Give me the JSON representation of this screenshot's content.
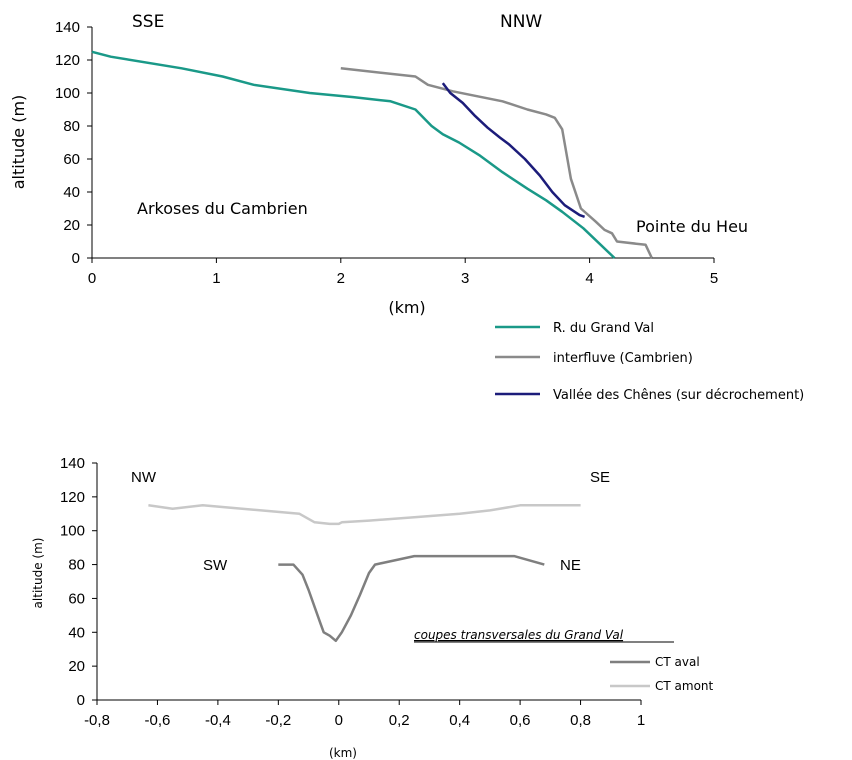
{
  "chart_data": [
    {
      "type": "line",
      "ylabel": "altitude (m)",
      "xlabel": "(km)",
      "xlim": [
        0,
        5
      ],
      "ylim": [
        0,
        140
      ],
      "x_ticks": [
        "0",
        "1",
        "2",
        "3",
        "4",
        "5"
      ],
      "y_ticks": [
        "0",
        "20",
        "40",
        "60",
        "80",
        "100",
        "120",
        "140"
      ],
      "grid": false,
      "legend_position": "bottom-right, below plot",
      "annotations": {
        "sse": "SSE",
        "nnw": "NNW",
        "arkoses": "Arkoses  du Cambrien",
        "pointe": "Pointe du Heu"
      },
      "series": [
        {
          "name": "R. du Grand Val",
          "color": "#1a9988",
          "points": [
            [
              0,
              125
            ],
            [
              0.15,
              122
            ],
            [
              0.72,
              115
            ],
            [
              1.05,
              110
            ],
            [
              1.3,
              105
            ],
            [
              1.75,
              100
            ],
            [
              2.1,
              97.5
            ],
            [
              2.4,
              95
            ],
            [
              2.6,
              90
            ],
            [
              2.73,
              80
            ],
            [
              2.82,
              75
            ],
            [
              2.95,
              70
            ],
            [
              3.12,
              62
            ],
            [
              3.3,
              52
            ],
            [
              3.5,
              42
            ],
            [
              3.65,
              35
            ],
            [
              3.78,
              28
            ],
            [
              3.95,
              18
            ],
            [
              4.2,
              0
            ]
          ]
        },
        {
          "name": "interfluve (Cambrien)",
          "color": "#8a8a8a",
          "points": [
            [
              2.0,
              115
            ],
            [
              2.6,
              110
            ],
            [
              2.7,
              105
            ],
            [
              2.9,
              101
            ],
            [
              3.1,
              98
            ],
            [
              3.3,
              95
            ],
            [
              3.5,
              90
            ],
            [
              3.65,
              87
            ],
            [
              3.72,
              85
            ],
            [
              3.78,
              78
            ],
            [
              3.85,
              48
            ],
            [
              3.93,
              30
            ],
            [
              4.05,
              22
            ],
            [
              4.12,
              17
            ],
            [
              4.18,
              15
            ],
            [
              4.22,
              10
            ],
            [
              4.45,
              8
            ],
            [
              4.5,
              0
            ]
          ]
        },
        {
          "name": "Vallée des Chênes (sur décrochement)",
          "color": "#1c1c7a",
          "points": [
            [
              2.82,
              106
            ],
            [
              2.88,
              100
            ],
            [
              2.98,
              94
            ],
            [
              3.08,
              86
            ],
            [
              3.18,
              79
            ],
            [
              3.28,
              73
            ],
            [
              3.35,
              69
            ],
            [
              3.48,
              60
            ],
            [
              3.6,
              50
            ],
            [
              3.7,
              40
            ],
            [
              3.8,
              32
            ],
            [
              3.92,
              26
            ],
            [
              3.96,
              25
            ]
          ]
        }
      ]
    },
    {
      "type": "line",
      "ylabel": "altitude (m)",
      "xlabel": "(km)",
      "xlim": [
        -0.8,
        1
      ],
      "ylim": [
        0,
        140
      ],
      "x_ticks": [
        "-0,8",
        "-0,6",
        "-0,4",
        "-0,2",
        "0",
        "0,2",
        "0,4",
        "0,6",
        "0,8",
        "1"
      ],
      "y_ticks": [
        "0",
        "20",
        "40",
        "60",
        "80",
        "100",
        "120",
        "140"
      ],
      "grid": false,
      "legend_title": "coupes transversales du Grand Val",
      "legend_position": "right, inside plot",
      "annotations": {
        "nw": "NW",
        "se": "SE",
        "sw": "SW",
        "ne": "NE"
      },
      "series": [
        {
          "name": "CT aval",
          "color": "#7f7f7f",
          "points": [
            [
              -0.2,
              80
            ],
            [
              -0.15,
              80
            ],
            [
              -0.12,
              74
            ],
            [
              -0.1,
              65
            ],
            [
              -0.08,
              55
            ],
            [
              -0.06,
              45
            ],
            [
              -0.05,
              40
            ],
            [
              -0.03,
              38
            ],
            [
              -0.01,
              35
            ],
            [
              0.01,
              40
            ],
            [
              0.04,
              50
            ],
            [
              0.07,
              62
            ],
            [
              0.1,
              75
            ],
            [
              0.12,
              80
            ],
            [
              0.25,
              85
            ],
            [
              0.58,
              85
            ],
            [
              0.68,
              80
            ]
          ]
        },
        {
          "name": "CT amont",
          "color": "#c8c8c8",
          "points": [
            [
              -0.63,
              115
            ],
            [
              -0.55,
              113
            ],
            [
              -0.45,
              115
            ],
            [
              -0.13,
              110
            ],
            [
              -0.08,
              105
            ],
            [
              -0.03,
              104
            ],
            [
              0,
              104
            ],
            [
              0.01,
              105
            ],
            [
              0.1,
              106
            ],
            [
              0.25,
              108
            ],
            [
              0.4,
              110
            ],
            [
              0.5,
              112
            ],
            [
              0.6,
              115
            ],
            [
              0.8,
              115
            ]
          ]
        }
      ]
    }
  ]
}
